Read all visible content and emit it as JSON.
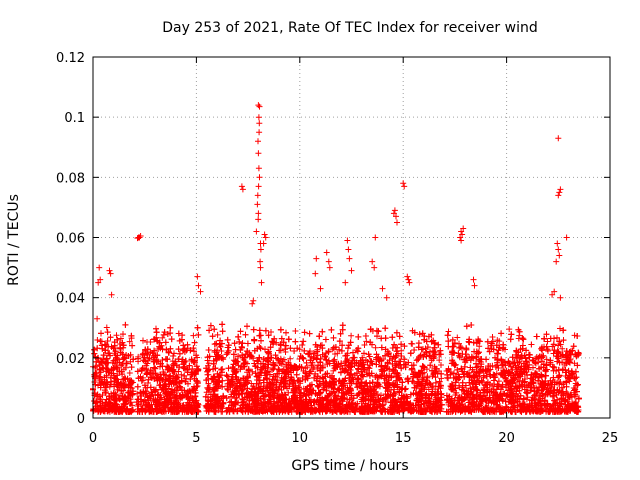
{
  "chart_data": {
    "type": "scatter",
    "title": "Day 253 of 2021, Rate Of TEC Index for receiver wind",
    "xlabel": "GPS time / hours",
    "ylabel": "ROTI / TECUs",
    "xlim": [
      0,
      25
    ],
    "ylim": [
      0,
      0.12
    ],
    "x_ticks": [
      0,
      5,
      10,
      15,
      20,
      25
    ],
    "x_tick_labels": [
      "0",
      "5",
      "10",
      "15",
      "20",
      "25"
    ],
    "y_ticks": [
      0,
      0.02,
      0.04,
      0.06,
      0.08,
      0.1,
      0.12
    ],
    "y_tick_labels": [
      "0",
      "0.02",
      "0.04",
      "0.06",
      "0.08",
      "0.1",
      "0.12"
    ],
    "grid": true,
    "marker": "+",
    "series": [
      {
        "name": "ROTI",
        "color": "#ff0000",
        "seed": 253,
        "bulk_points": 9000,
        "bulk_range": [
          0.002,
          0.032
        ],
        "gaps_hours": [
          [
            1.95,
            2.1
          ],
          [
            5.1,
            5.45
          ],
          [
            6.3,
            6.45
          ],
          [
            16.9,
            17.1
          ],
          [
            23.5,
            25
          ]
        ],
        "points": [
          [
            0.3,
            0.05
          ],
          [
            0.25,
            0.045
          ],
          [
            0.35,
            0.046
          ],
          [
            0.2,
            0.033
          ],
          [
            0.8,
            0.049
          ],
          [
            0.85,
            0.048
          ],
          [
            0.9,
            0.041
          ],
          [
            2.2,
            0.06
          ],
          [
            2.25,
            0.06
          ],
          [
            2.3,
            0.0605
          ],
          [
            2.15,
            0.0598
          ],
          [
            5.05,
            0.047
          ],
          [
            5.1,
            0.044
          ],
          [
            5.2,
            0.042
          ],
          [
            7.2,
            0.077
          ],
          [
            7.25,
            0.076
          ],
          [
            7.7,
            0.038
          ],
          [
            7.75,
            0.039
          ],
          [
            8.0,
            0.104
          ],
          [
            8.05,
            0.1035
          ],
          [
            8.02,
            0.1
          ],
          [
            8.04,
            0.098
          ],
          [
            8.03,
            0.095
          ],
          [
            7.98,
            0.092
          ],
          [
            8.0,
            0.088
          ],
          [
            8.02,
            0.083
          ],
          [
            8.05,
            0.08
          ],
          [
            8.01,
            0.077
          ],
          [
            7.97,
            0.074
          ],
          [
            7.95,
            0.071
          ],
          [
            8.0,
            0.068
          ],
          [
            7.99,
            0.066
          ],
          [
            7.9,
            0.062
          ],
          [
            8.1,
            0.058
          ],
          [
            8.12,
            0.056
          ],
          [
            8.08,
            0.052
          ],
          [
            8.1,
            0.05
          ],
          [
            8.15,
            0.045
          ],
          [
            8.3,
            0.061
          ],
          [
            8.35,
            0.06
          ],
          [
            8.25,
            0.058
          ],
          [
            10.8,
            0.053
          ],
          [
            10.75,
            0.048
          ],
          [
            11.0,
            0.043
          ],
          [
            11.3,
            0.055
          ],
          [
            11.4,
            0.052
          ],
          [
            11.45,
            0.05
          ],
          [
            12.3,
            0.059
          ],
          [
            12.35,
            0.056
          ],
          [
            12.4,
            0.053
          ],
          [
            12.5,
            0.049
          ],
          [
            12.2,
            0.045
          ],
          [
            13.5,
            0.052
          ],
          [
            13.6,
            0.05
          ],
          [
            13.65,
            0.06
          ],
          [
            14.0,
            0.043
          ],
          [
            14.2,
            0.04
          ],
          [
            14.6,
            0.069
          ],
          [
            14.65,
            0.067
          ],
          [
            14.7,
            0.065
          ],
          [
            14.55,
            0.068
          ],
          [
            15.0,
            0.078
          ],
          [
            15.05,
            0.077
          ],
          [
            15.2,
            0.047
          ],
          [
            15.25,
            0.046
          ],
          [
            15.3,
            0.045
          ],
          [
            17.8,
            0.062
          ],
          [
            17.85,
            0.061
          ],
          [
            17.9,
            0.063
          ],
          [
            17.75,
            0.06
          ],
          [
            17.8,
            0.059
          ],
          [
            18.4,
            0.046
          ],
          [
            18.45,
            0.044
          ],
          [
            22.5,
            0.093
          ],
          [
            22.55,
            0.075
          ],
          [
            22.6,
            0.076
          ],
          [
            22.5,
            0.074
          ],
          [
            22.45,
            0.058
          ],
          [
            22.5,
            0.056
          ],
          [
            22.55,
            0.054
          ],
          [
            22.4,
            0.052
          ],
          [
            22.3,
            0.042
          ],
          [
            22.2,
            0.041
          ],
          [
            22.6,
            0.04
          ],
          [
            22.9,
            0.06
          ]
        ]
      }
    ]
  }
}
